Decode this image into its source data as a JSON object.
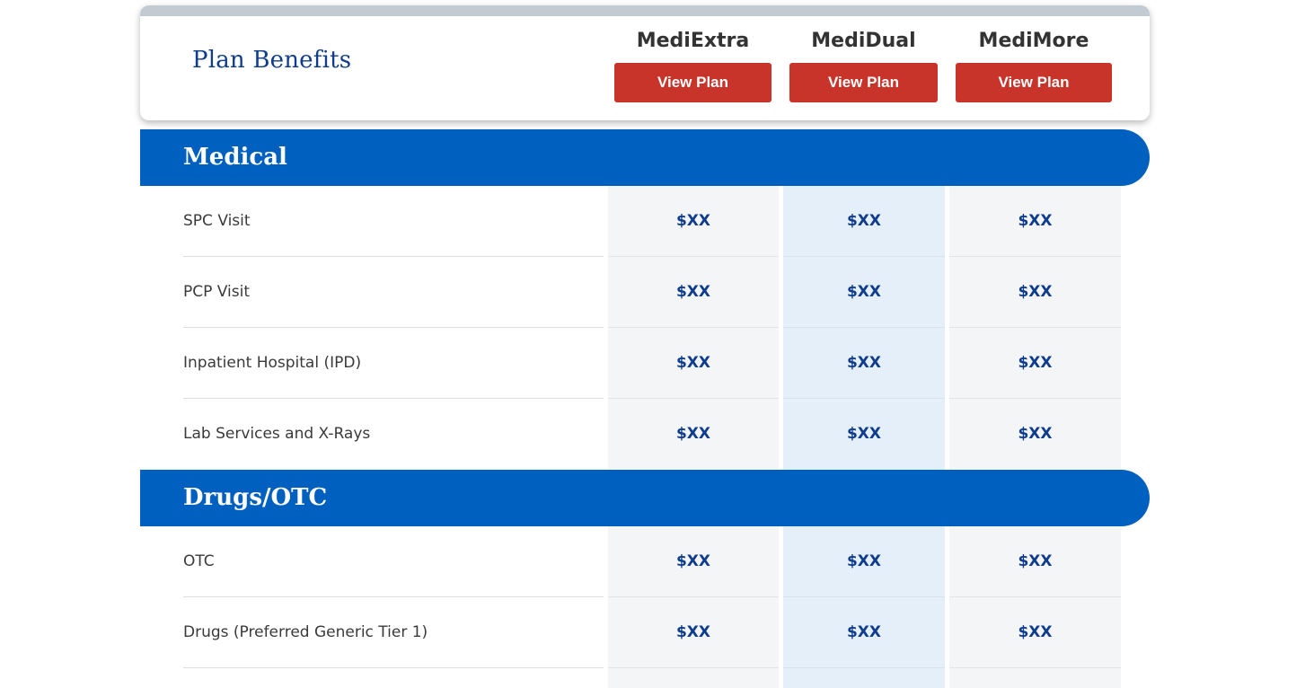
{
  "header": {
    "title": "Plan Benefits",
    "plans": [
      {
        "name": "MediExtra",
        "button_label": "View Plan"
      },
      {
        "name": "MediDual",
        "button_label": "View Plan"
      },
      {
        "name": "MediMore",
        "button_label": "View Plan"
      }
    ]
  },
  "sections": [
    {
      "title": "Medical",
      "rows": [
        {
          "label": "SPC Visit",
          "values": [
            "$XX",
            "$XX",
            "$XX"
          ]
        },
        {
          "label": "PCP Visit",
          "values": [
            "$XX",
            "$XX",
            "$XX"
          ]
        },
        {
          "label": "Inpatient Hospital (IPD)",
          "values": [
            "$XX",
            "$XX",
            "$XX"
          ]
        },
        {
          "label": "Lab Services and X-Rays",
          "values": [
            "$XX",
            "$XX",
            "$XX"
          ]
        }
      ]
    },
    {
      "title": "Drugs/OTC",
      "rows": [
        {
          "label": "OTC",
          "values": [
            "$XX",
            "$XX",
            "$XX"
          ]
        },
        {
          "label": "Drugs (Preferred Generic Tier 1)",
          "values": [
            "$XX",
            "$XX",
            "$XX"
          ]
        }
      ]
    }
  ],
  "colors": {
    "brand_blue": "#0060bf",
    "title_navy": "#0f3c8c",
    "button_red": "#c8332a",
    "highlight_column": "#e4eff9"
  }
}
